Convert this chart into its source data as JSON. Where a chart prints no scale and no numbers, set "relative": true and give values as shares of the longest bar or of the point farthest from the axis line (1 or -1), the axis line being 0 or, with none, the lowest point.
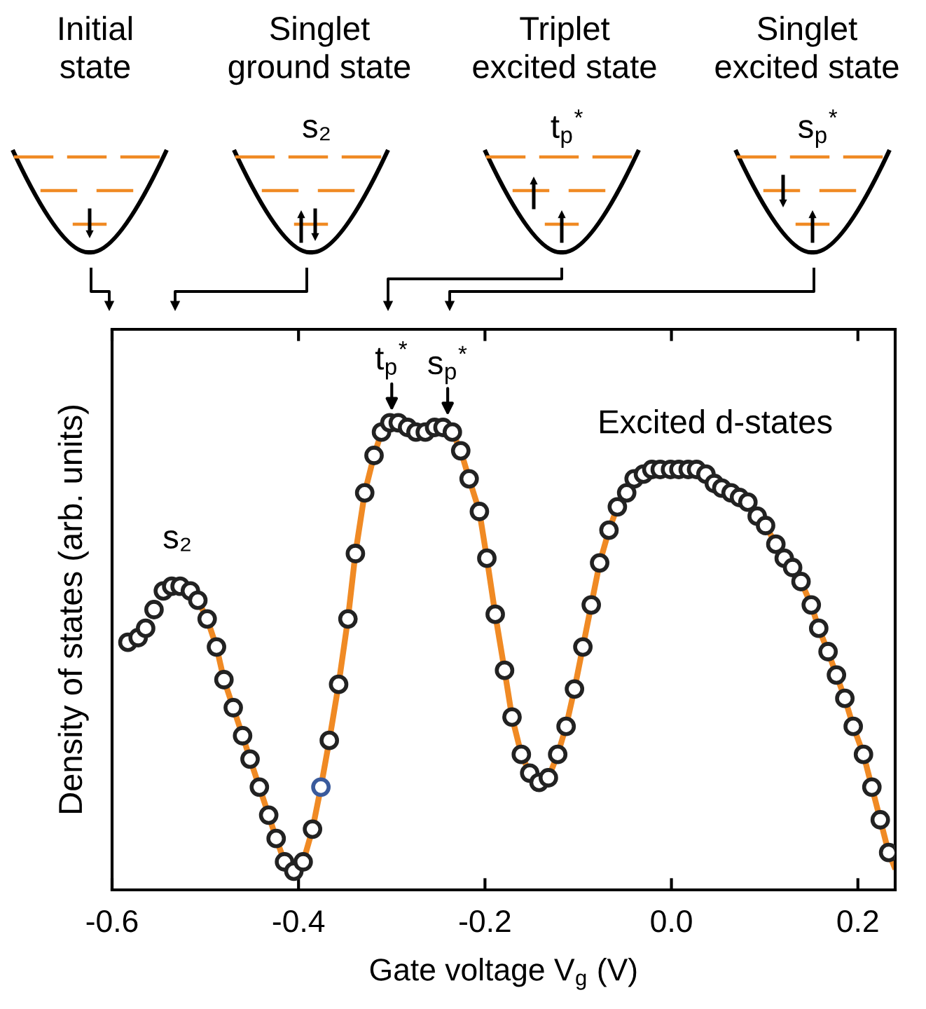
{
  "chart_data": {
    "type": "scatter",
    "relative": true,
    "xlabel": "Gate voltage V$_{g}$ (V)",
    "ylabel": "Density of states (arb. units)",
    "xlim": [
      -0.6,
      0.24
    ],
    "xticks": [
      {
        "value": -0.6,
        "label": "-0.6"
      },
      {
        "value": -0.4,
        "label": "-0.4"
      },
      {
        "value": -0.2,
        "label": "-0.2"
      },
      {
        "value": 0,
        "label": "0.0"
      },
      {
        "value": 0.2,
        "label": "0.2"
      }
    ],
    "marker": "circle",
    "grid": false,
    "legend": false,
    "tick_labels": "x",
    "series": [
      {
        "type": "line",
        "marker": "none",
        "color": "#f08a24",
        "x": [
          -0.508,
          -0.498,
          -0.488,
          -0.48,
          -0.47,
          -0.46,
          -0.452,
          -0.442,
          -0.432,
          -0.424,
          -0.415,
          -0.405,
          -0.395,
          -0.385,
          -0.376,
          -0.367,
          -0.357,
          -0.347,
          -0.339,
          -0.329,
          -0.319,
          -0.311,
          -0.302,
          -0.293,
          -0.283,
          -0.274,
          -0.264,
          -0.254,
          -0.245,
          -0.235,
          -0.226,
          -0.217,
          -0.206,
          -0.198,
          -0.189,
          -0.179,
          -0.171,
          -0.161,
          -0.152,
          -0.142,
          -0.132,
          -0.122,
          -0.113,
          -0.104,
          -0.095,
          -0.086,
          -0.077,
          -0.067,
          -0.058,
          -0.048,
          -0.04,
          -0.03,
          -0.021,
          -0.012,
          -0.001,
          0.008,
          0.018,
          0.027,
          0.037,
          0.046,
          0.054,
          0.064,
          0.073,
          0.082,
          0.092,
          0.101,
          0.112,
          0.121,
          0.13,
          0.139,
          0.15,
          0.158,
          0.168,
          0.177,
          0.186,
          0.195,
          0.206,
          0.215,
          0.224,
          0.233,
          0.239
        ],
        "values": [
          0.62,
          0.58,
          0.52,
          0.45,
          0.39,
          0.33,
          0.28,
          0.22,
          0.16,
          0.11,
          0.06,
          0.04,
          0.06,
          0.13,
          0.22,
          0.32,
          0.44,
          0.58,
          0.72,
          0.85,
          0.93,
          0.98,
          1.0,
          1.0,
          0.99,
          0.98,
          0.98,
          0.99,
          0.99,
          0.98,
          0.94,
          0.88,
          0.81,
          0.71,
          0.59,
          0.47,
          0.37,
          0.29,
          0.25,
          0.23,
          0.24,
          0.29,
          0.35,
          0.43,
          0.52,
          0.61,
          0.7,
          0.77,
          0.82,
          0.85,
          0.88,
          0.89,
          0.9,
          0.9,
          0.9,
          0.9,
          0.9,
          0.9,
          0.89,
          0.87,
          0.86,
          0.85,
          0.84,
          0.83,
          0.8,
          0.78,
          0.74,
          0.71,
          0.69,
          0.66,
          0.61,
          0.56,
          0.51,
          0.46,
          0.41,
          0.35,
          0.29,
          0.22,
          0.15,
          0.08,
          0.05
        ]
      },
      {
        "color": "#222222",
        "x": [
          -0.583,
          -0.572,
          -0.564,
          -0.555,
          -0.545,
          -0.536,
          -0.527,
          -0.516,
          -0.508,
          -0.498,
          -0.488,
          -0.48,
          -0.47,
          -0.46,
          -0.452,
          -0.442,
          -0.432,
          -0.424,
          -0.415,
          -0.405,
          -0.395,
          -0.385,
          -0.367,
          -0.357,
          -0.347,
          -0.339,
          -0.329,
          -0.319,
          -0.311,
          -0.302,
          -0.293,
          -0.283,
          -0.274,
          -0.264,
          -0.254,
          -0.245,
          -0.235,
          -0.226,
          -0.217,
          -0.206,
          -0.198,
          -0.189,
          -0.179,
          -0.171,
          -0.161,
          -0.152,
          -0.142,
          -0.132,
          -0.122,
          -0.113,
          -0.104,
          -0.095,
          -0.086,
          -0.077,
          -0.067,
          -0.058,
          -0.048,
          -0.04,
          -0.03,
          -0.021,
          -0.012,
          -0.001,
          0.008,
          0.018,
          0.027,
          0.037,
          0.046,
          0.054,
          0.064,
          0.073,
          0.082,
          0.092,
          0.101,
          0.112,
          0.121,
          0.13,
          0.139,
          0.15,
          0.158,
          0.168,
          0.177,
          0.186,
          0.195,
          0.206,
          0.215,
          0.224,
          0.233
        ],
        "values": [
          0.53,
          0.54,
          0.56,
          0.6,
          0.64,
          0.65,
          0.65,
          0.64,
          0.62,
          0.58,
          0.52,
          0.45,
          0.39,
          0.33,
          0.28,
          0.22,
          0.16,
          0.11,
          0.06,
          0.04,
          0.06,
          0.13,
          0.32,
          0.44,
          0.58,
          0.72,
          0.85,
          0.93,
          0.98,
          1.0,
          1.0,
          0.99,
          0.98,
          0.98,
          0.99,
          0.99,
          0.98,
          0.94,
          0.88,
          0.81,
          0.71,
          0.59,
          0.47,
          0.37,
          0.29,
          0.25,
          0.23,
          0.24,
          0.29,
          0.35,
          0.43,
          0.52,
          0.61,
          0.7,
          0.77,
          0.82,
          0.85,
          0.88,
          0.89,
          0.9,
          0.9,
          0.9,
          0.9,
          0.9,
          0.9,
          0.89,
          0.87,
          0.86,
          0.85,
          0.84,
          0.83,
          0.8,
          0.78,
          0.74,
          0.71,
          0.69,
          0.66,
          0.61,
          0.56,
          0.51,
          0.46,
          0.41,
          0.35,
          0.29,
          0.22,
          0.15,
          0.08
        ]
      },
      {
        "color": "#3a5a9c",
        "x": [
          -0.376
        ],
        "values": [
          0.22
        ]
      }
    ],
    "annotations": [
      {
        "text": "s₂",
        "x": -0.53,
        "y": 0.65
      },
      {
        "text": "t$_{p}$$^{*}$",
        "x": -0.3,
        "y": 1.0
      },
      {
        "text": "s$_{p}$$^{*}$",
        "x": -0.24,
        "y": 0.99
      },
      "Excited d-states",
      "Initial\nstate",
      "Singlet\nground state",
      "Triplet\nexcited state",
      "Singlet\nexcited state",
      "s₂",
      "t$_{p}$$^{*}$",
      "s$_{p}$$^{*}$"
    ]
  }
}
